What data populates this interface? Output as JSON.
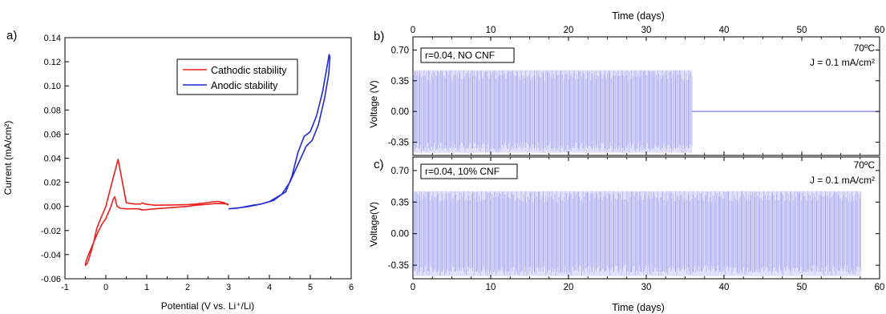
{
  "colors": {
    "cathodic": "#e8211f",
    "anodic": "#1f2bd4",
    "cycling": "#5a5ae8",
    "axis": "#000000"
  },
  "chart_data": [
    {
      "panel_label": "a)",
      "type": "line",
      "xlabel": "Potential (V vs. Li⁺/Li)",
      "ylabel": "Current (mA/cm²)",
      "xlim": [
        -1,
        6
      ],
      "ylim": [
        -0.06,
        0.14
      ],
      "xticks": [
        -1,
        0,
        1,
        2,
        3,
        4,
        5,
        6
      ],
      "yticks": [
        -0.06,
        -0.04,
        -0.02,
        0.0,
        0.02,
        0.04,
        0.06,
        0.08,
        0.1,
        0.12,
        0.14
      ],
      "xtick_labels": [
        "-1",
        "0",
        "1",
        "2",
        "3",
        "4",
        "5",
        "6"
      ],
      "ytick_labels": [
        "-0.06",
        "-0.04",
        "-0.02",
        "0.00",
        "0.02",
        "0.04",
        "0.06",
        "0.08",
        "0.10",
        "0.12",
        "0.14"
      ],
      "legend_position": "top-right",
      "series": [
        {
          "name": "Cathodic stability",
          "x": [
            3.0,
            2.8,
            2.6,
            2.4,
            2.2,
            2.0,
            1.6,
            1.2,
            0.9,
            0.8,
            0.5,
            0.35,
            0.28,
            0.25,
            0.22,
            0.18,
            0.12,
            0.05,
            0.0,
            -0.1,
            -0.2,
            -0.3,
            -0.4,
            -0.48,
            -0.5,
            -0.45,
            -0.38,
            -0.3,
            -0.22,
            -0.1,
            0.0,
            0.15,
            0.3,
            0.5,
            0.7,
            0.85,
            0.9,
            0.95,
            1.2,
            1.6,
            2.0,
            2.2,
            2.4,
            2.6,
            2.75,
            2.9,
            3.0
          ],
          "y": [
            0.002,
            0.0025,
            0.0022,
            0.0015,
            0.001,
            0.0,
            -0.001,
            -0.002,
            -0.003,
            -0.002,
            -0.002,
            -0.0015,
            0.0,
            0.003,
            0.008,
            0.006,
            -0.0005,
            -0.006,
            -0.01,
            -0.015,
            -0.022,
            -0.03,
            -0.038,
            -0.045,
            -0.049,
            -0.047,
            -0.04,
            -0.03,
            -0.018,
            -0.008,
            0.0,
            0.02,
            0.039,
            0.003,
            0.002,
            0.002,
            0.003,
            0.002,
            0.001,
            0.0012,
            0.0015,
            0.002,
            0.0028,
            0.0038,
            0.0042,
            0.003,
            0.001
          ]
        },
        {
          "name": "Anodic stability",
          "x": [
            3.0,
            3.2,
            3.5,
            3.8,
            4.1,
            4.3,
            4.5,
            4.7,
            4.9,
            5.05,
            5.2,
            5.35,
            5.45,
            5.48,
            5.46,
            5.42,
            5.3,
            5.15,
            5.0,
            4.85,
            4.7,
            4.55,
            4.4,
            4.2,
            4.0,
            3.8,
            3.6,
            3.3,
            3.0
          ],
          "y": [
            -0.002,
            -0.0015,
            0.0,
            0.002,
            0.005,
            0.01,
            0.02,
            0.035,
            0.05,
            0.055,
            0.068,
            0.09,
            0.11,
            0.124,
            0.126,
            0.118,
            0.095,
            0.075,
            0.062,
            0.058,
            0.045,
            0.025,
            0.012,
            0.008,
            0.004,
            0.002,
            0.001,
            -0.001,
            -0.002
          ]
        }
      ]
    },
    {
      "panel_label": "b)",
      "type": "line",
      "top_xlabel": "Time (days)",
      "ylabel": "Voltage (V)",
      "xlim": [
        0,
        60
      ],
      "ylim": [
        -0.5,
        0.85
      ],
      "xticks": [
        0,
        10,
        20,
        30,
        40,
        50,
        60
      ],
      "xtick_labels": [
        "0",
        "10",
        "20",
        "30",
        "40",
        "50",
        "60"
      ],
      "yticks": [
        -0.35,
        0.0,
        0.35,
        0.7
      ],
      "ytick_labels": [
        "-0.35",
        "0.00",
        "0.35",
        "0.70"
      ],
      "annotation_box": "r=0.04, NO CNF",
      "temperature": "70ºC",
      "current_density": "J = 0.1 mA/cm²",
      "series": [
        {
          "name": "",
          "cycling_until_day": 35.9,
          "amplitude_max": 0.47,
          "amplitude_min": -0.47,
          "after_failure_value": 0.0,
          "x_end": 60
        }
      ]
    },
    {
      "panel_label": "c)",
      "type": "line",
      "xlabel": "Time (days)",
      "ylabel": "Voltage(V)",
      "xlim": [
        0,
        60
      ],
      "ylim": [
        -0.5,
        0.85
      ],
      "xticks": [
        0,
        10,
        20,
        30,
        40,
        50,
        60
      ],
      "xtick_labels": [
        "0",
        "10",
        "20",
        "30",
        "40",
        "50",
        "60"
      ],
      "yticks": [
        -0.35,
        0.0,
        0.35,
        0.7
      ],
      "ytick_labels": [
        "-0.35",
        "0.00",
        "0.35",
        "0.70"
      ],
      "annotation_box": "r=0.04, 10% CNF",
      "temperature": "70ºC",
      "current_density": "J = 0.1 mA/cm²",
      "series": [
        {
          "name": "",
          "cycling_until_day": 57.6,
          "amplitude_max": 0.47,
          "amplitude_min": -0.47
        }
      ]
    }
  ]
}
